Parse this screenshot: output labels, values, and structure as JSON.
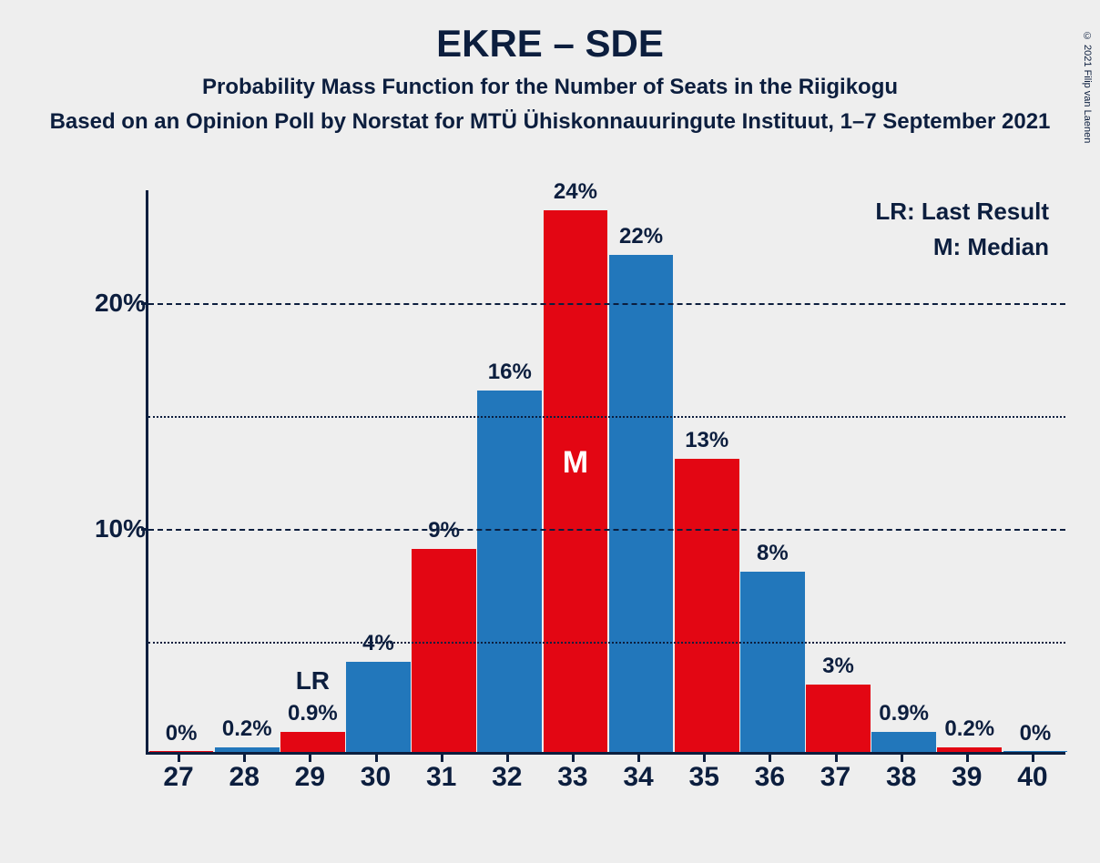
{
  "copyright": "© 2021 Filip van Laenen",
  "title": "EKRE – SDE",
  "subtitle": "Probability Mass Function for the Number of Seats in the Riigikogu",
  "source": "Based on an Opinion Poll by Norstat for MTÜ Ühiskonnauuringute Instituut, 1–7 September 2021",
  "legend": {
    "lr": "LR: Last Result",
    "m": "M: Median"
  },
  "chart": {
    "type": "bar",
    "background_color": "#eeeeee",
    "text_color": "#0c1e3e",
    "colors": {
      "blue": "#2277bb",
      "red": "#e30613"
    },
    "ylim": [
      0,
      25
    ],
    "y_major_ticks": [
      10,
      20
    ],
    "y_major_labels": [
      "10%",
      "20%"
    ],
    "y_minor_ticks": [
      5,
      15
    ],
    "bar_width": 0.98,
    "label_fontsize": 24,
    "title_fontsize": 42,
    "categories": [
      "27",
      "28",
      "29",
      "30",
      "31",
      "32",
      "33",
      "34",
      "35",
      "36",
      "37",
      "38",
      "39",
      "40"
    ],
    "values": [
      0,
      0.2,
      0.9,
      4,
      9,
      16,
      24,
      22,
      13,
      8,
      3,
      0.9,
      0.2,
      0
    ],
    "bar_labels": [
      "0%",
      "0.2%",
      "0.9%",
      "4%",
      "9%",
      "16%",
      "24%",
      "22%",
      "13%",
      "8%",
      "3%",
      "0.9%",
      "0.2%",
      "0%"
    ],
    "bar_colors": [
      "red",
      "blue",
      "red",
      "blue",
      "red",
      "blue",
      "red",
      "blue",
      "red",
      "blue",
      "red",
      "blue",
      "red",
      "blue"
    ],
    "lr_index": 2,
    "lr_text": "LR",
    "median_index": 6,
    "median_text": "M"
  }
}
